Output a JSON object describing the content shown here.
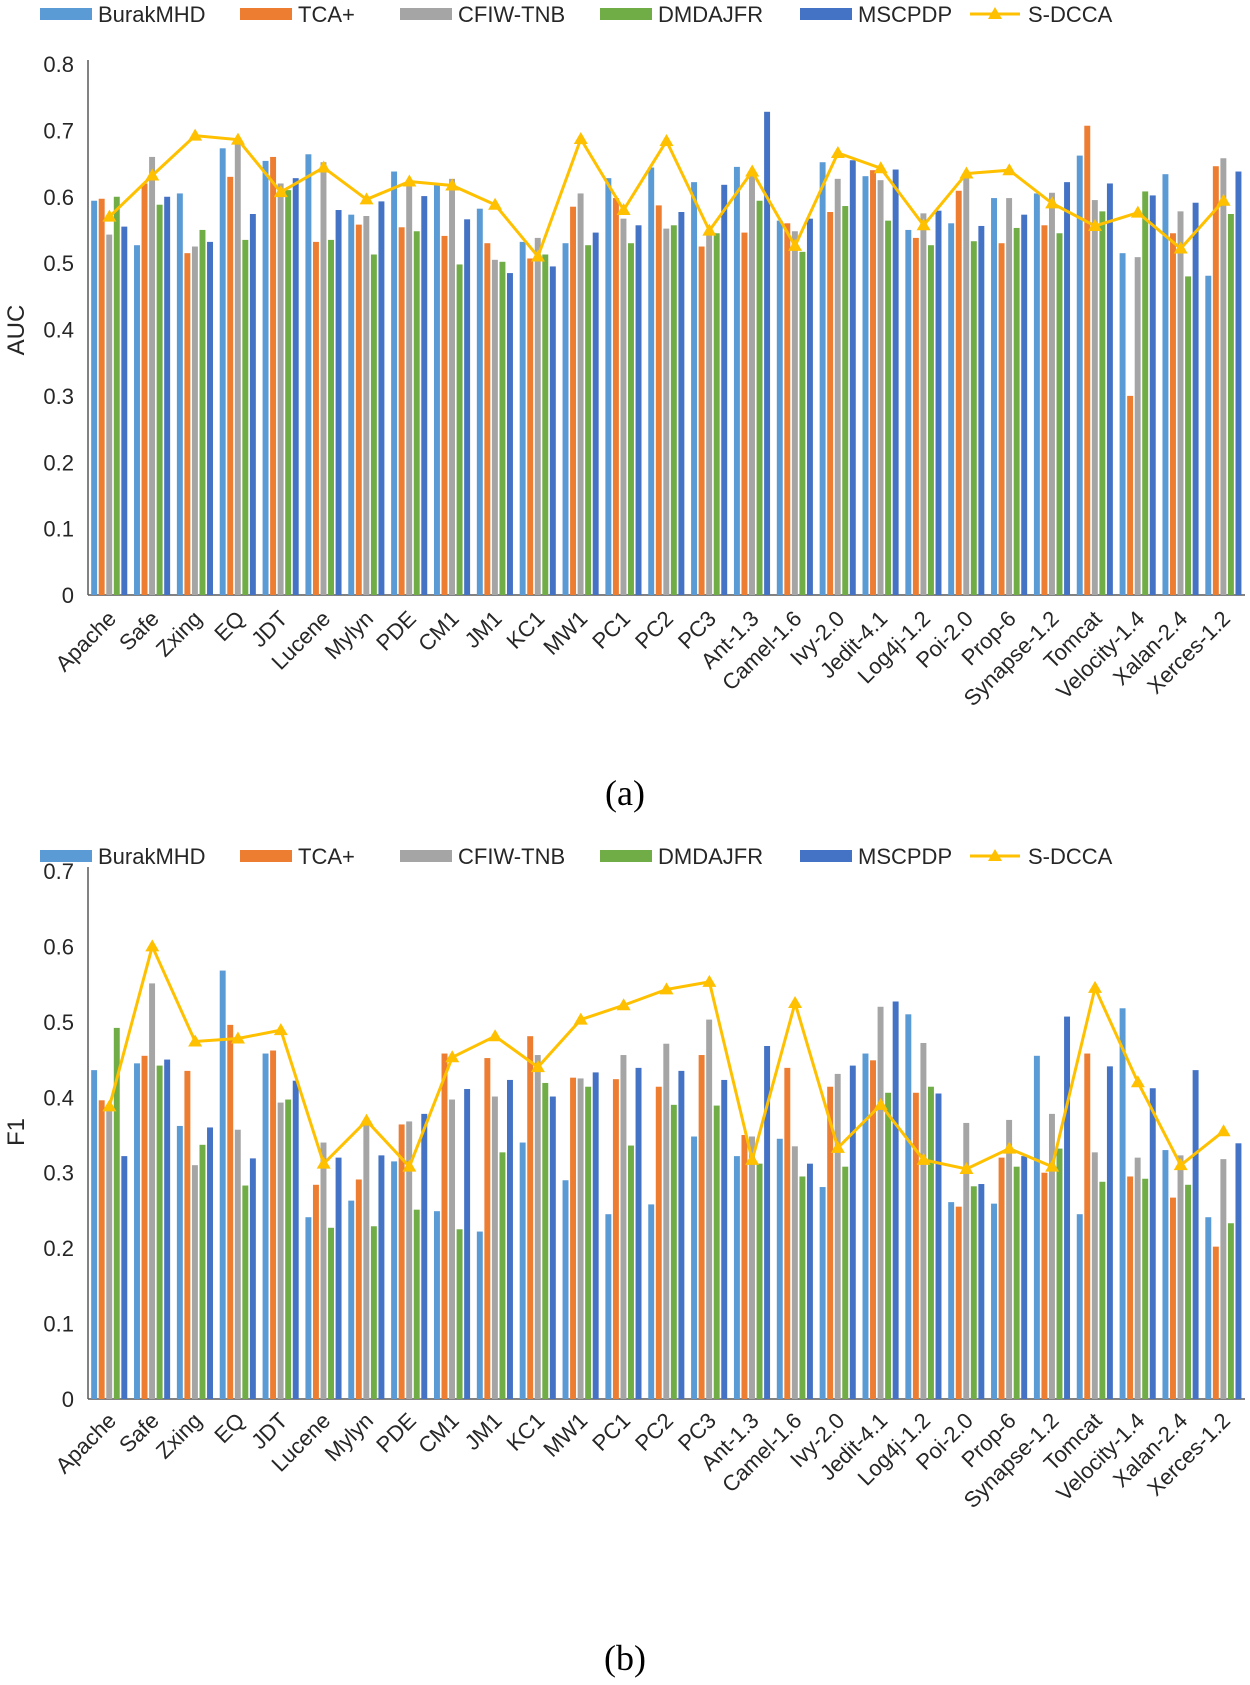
{
  "colors": {
    "BurakMHD": "#5b9bd5",
    "TCA+": "#ed7d31",
    "CFIW-TNB": "#a5a5a5",
    "DMDAJFR": "#70ad47",
    "MSCPDP": "#4472c4",
    "S-DCCA": "#ffc000"
  },
  "chart_data": [
    {
      "type": "bar",
      "caption": "(a)",
      "ylabel": "AUC",
      "xlabel": "",
      "ylim": [
        0,
        0.8
      ],
      "yticks": [
        "0",
        "0.1",
        "0.2",
        "0.3",
        "0.4",
        "0.5",
        "0.6",
        "0.7",
        "0.8"
      ],
      "legend_position": "top",
      "legend": [
        "BurakMHD",
        "TCA+",
        "CFIW-TNB",
        "DMDAJFR",
        "MSCPDP",
        "S-DCCA"
      ],
      "categories": [
        "Apache",
        "Safe",
        "Zxing",
        "EQ",
        "JDT",
        "Lucene",
        "Mylyn",
        "PDE",
        "CM1",
        "JM1",
        "KC1",
        "MW1",
        "PC1",
        "PC2",
        "PC3",
        "Ant-1.3",
        "Camel-1.6",
        "Ivy-2.0",
        "Jedit-4.1",
        "Log4j-1.2",
        "Poi-2.0",
        "Prop-6",
        "Synapse-1.2",
        "Tomcat",
        "Velocity-1.4",
        "Xalan-2.4",
        "Xerces-1.2"
      ],
      "series": [
        {
          "name": "BurakMHD",
          "type": "bar",
          "values": [
            0.594,
            0.527,
            0.605,
            0.673,
            0.654,
            0.664,
            0.573,
            0.638,
            0.62,
            0.582,
            0.532,
            0.53,
            0.628,
            0.644,
            0.622,
            0.645,
            0.564,
            0.652,
            0.631,
            0.55,
            0.56,
            0.598,
            0.605,
            0.662,
            0.515,
            0.634,
            0.481
          ]
        },
        {
          "name": "TCA+",
          "type": "bar",
          "values": [
            0.597,
            0.62,
            0.515,
            0.63,
            0.66,
            0.532,
            0.558,
            0.554,
            0.541,
            0.53,
            0.507,
            0.585,
            0.598,
            0.587,
            0.525,
            0.546,
            0.56,
            0.577,
            0.64,
            0.538,
            0.609,
            0.53,
            0.557,
            0.707,
            0.3,
            0.545,
            0.646
          ]
        },
        {
          "name": "CFIW-TNB",
          "type": "bar",
          "values": [
            0.543,
            0.66,
            0.525,
            0.685,
            0.62,
            0.652,
            0.571,
            0.616,
            0.627,
            0.505,
            0.538,
            0.605,
            0.567,
            0.552,
            0.55,
            0.636,
            0.548,
            0.627,
            0.625,
            0.575,
            0.635,
            0.598,
            0.606,
            0.595,
            0.509,
            0.578,
            0.658
          ]
        },
        {
          "name": "DMDAJFR",
          "type": "bar",
          "values": [
            0.6,
            0.588,
            0.55,
            0.535,
            0.61,
            0.535,
            0.513,
            0.548,
            0.498,
            0.502,
            0.513,
            0.527,
            0.53,
            0.557,
            0.545,
            0.594,
            0.517,
            0.586,
            0.564,
            0.527,
            0.533,
            0.553,
            0.545,
            0.578,
            0.608,
            0.48,
            0.574
          ]
        },
        {
          "name": "MSCPDP",
          "type": "bar",
          "values": [
            0.555,
            0.6,
            0.532,
            0.574,
            0.628,
            0.58,
            0.593,
            0.601,
            0.566,
            0.485,
            0.495,
            0.546,
            0.557,
            0.577,
            0.618,
            0.728,
            0.567,
            0.655,
            0.641,
            0.579,
            0.556,
            0.573,
            0.622,
            0.62,
            0.602,
            0.591,
            0.638
          ]
        },
        {
          "name": "S-DCCA",
          "type": "line",
          "values": [
            0.57,
            0.632,
            0.692,
            0.686,
            0.607,
            0.644,
            0.596,
            0.623,
            0.617,
            0.588,
            0.51,
            0.687,
            0.58,
            0.684,
            0.549,
            0.638,
            0.526,
            0.666,
            0.643,
            0.557,
            0.635,
            0.64,
            0.59,
            0.556,
            0.576,
            0.522,
            0.594
          ]
        }
      ]
    },
    {
      "type": "bar",
      "caption": "(b)",
      "ylabel": "F1",
      "xlabel": "",
      "ylim": [
        0,
        0.7
      ],
      "yticks": [
        "0",
        "0.1",
        "0.2",
        "0.3",
        "0.4",
        "0.5",
        "0.6",
        "0.7"
      ],
      "legend_position": "top",
      "legend": [
        "BurakMHD",
        "TCA+",
        "CFIW-TNB",
        "DMDAJFR",
        "MSCPDP",
        "S-DCCA"
      ],
      "categories": [
        "Apache",
        "Safe",
        "Zxing",
        "EQ",
        "JDT",
        "Lucene",
        "Mylyn",
        "PDE",
        "CM1",
        "JM1",
        "KC1",
        "MW1",
        "PC1",
        "PC2",
        "PC3",
        "Ant-1.3",
        "Camel-1.6",
        "Ivy-2.0",
        "Jedit-4.1",
        "Log4j-1.2",
        "Poi-2.0",
        "Prop-6",
        "Synapse-1.2",
        "Tomcat",
        "Velocity-1.4",
        "Xalan-2.4",
        "Xerces-1.2"
      ],
      "series": [
        {
          "name": "BurakMHD",
          "type": "bar",
          "values": [
            0.436,
            0.445,
            0.362,
            0.568,
            0.458,
            0.241,
            0.263,
            0.315,
            0.249,
            0.222,
            0.34,
            0.29,
            0.245,
            0.258,
            0.348,
            0.322,
            0.345,
            0.281,
            0.458,
            0.51,
            0.261,
            0.259,
            0.455,
            0.245,
            0.518,
            0.33,
            0.241
          ]
        },
        {
          "name": "TCA+",
          "type": "bar",
          "values": [
            0.396,
            0.455,
            0.435,
            0.496,
            0.462,
            0.284,
            0.291,
            0.364,
            0.458,
            0.452,
            0.481,
            0.426,
            0.424,
            0.414,
            0.456,
            0.35,
            0.439,
            0.414,
            0.449,
            0.406,
            0.255,
            0.32,
            0.3,
            0.458,
            0.295,
            0.267,
            0.202
          ]
        },
        {
          "name": "CFIW-TNB",
          "type": "bar",
          "values": [
            0.387,
            0.551,
            0.31,
            0.357,
            0.393,
            0.34,
            0.367,
            0.368,
            0.397,
            0.401,
            0.456,
            0.425,
            0.456,
            0.471,
            0.503,
            0.348,
            0.335,
            0.431,
            0.52,
            0.472,
            0.366,
            0.37,
            0.378,
            0.327,
            0.32,
            0.323,
            0.318
          ]
        },
        {
          "name": "DMDAJFR",
          "type": "bar",
          "values": [
            0.492,
            0.442,
            0.337,
            0.283,
            0.397,
            0.227,
            0.229,
            0.251,
            0.225,
            0.327,
            0.419,
            0.414,
            0.336,
            0.39,
            0.389,
            0.312,
            0.295,
            0.308,
            0.406,
            0.414,
            0.282,
            0.308,
            0.332,
            0.288,
            0.292,
            0.284,
            0.233
          ]
        },
        {
          "name": "MSCPDP",
          "type": "bar",
          "values": [
            0.322,
            0.45,
            0.36,
            0.319,
            0.422,
            0.32,
            0.323,
            0.378,
            0.411,
            0.423,
            0.401,
            0.433,
            0.439,
            0.435,
            0.423,
            0.468,
            0.312,
            0.442,
            0.527,
            0.405,
            0.285,
            0.322,
            0.507,
            0.441,
            0.412,
            0.436,
            0.339
          ]
        },
        {
          "name": "S-DCCA",
          "type": "line",
          "values": [
            0.388,
            0.6,
            0.474,
            0.478,
            0.489,
            0.312,
            0.369,
            0.308,
            0.453,
            0.481,
            0.44,
            0.503,
            0.522,
            0.543,
            0.553,
            0.317,
            0.525,
            0.333,
            0.39,
            0.317,
            0.305,
            0.332,
            0.308,
            0.545,
            0.42,
            0.31,
            0.355
          ]
        }
      ]
    }
  ]
}
